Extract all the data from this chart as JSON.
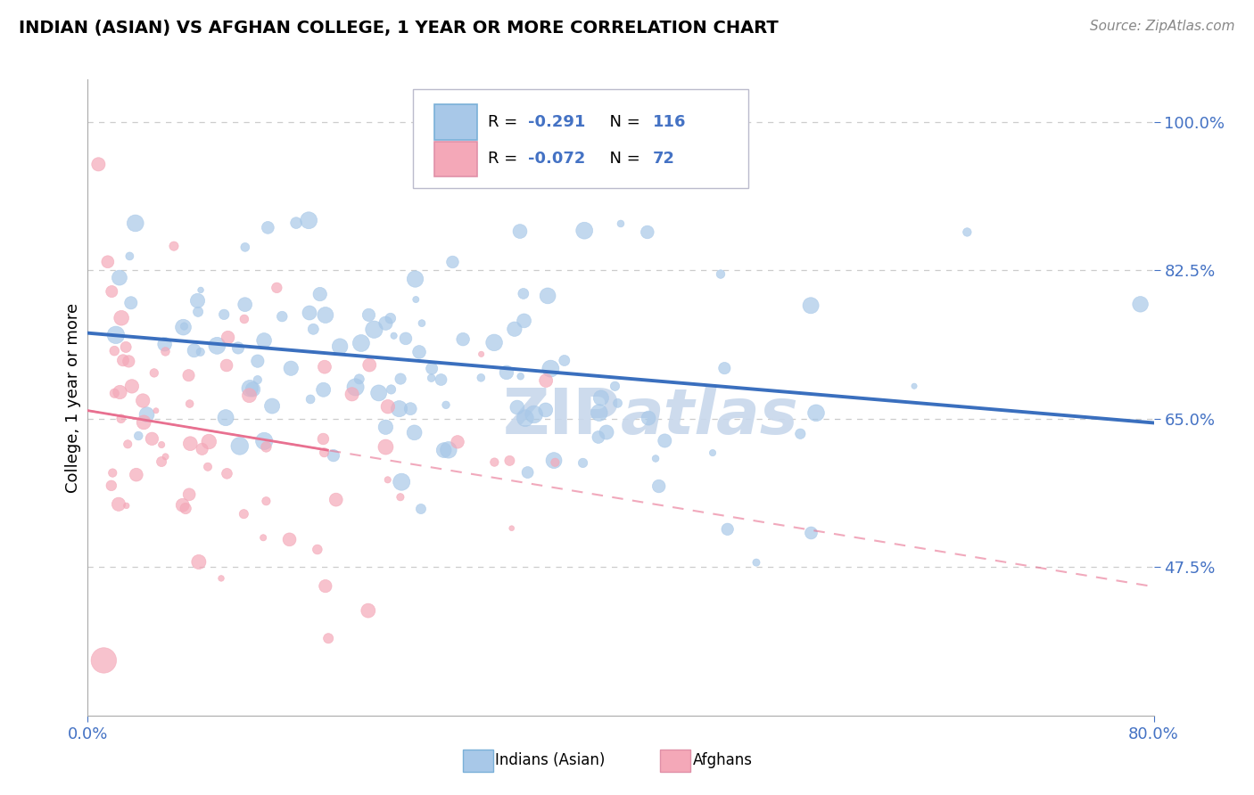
{
  "title": "INDIAN (ASIAN) VS AFGHAN COLLEGE, 1 YEAR OR MORE CORRELATION CHART",
  "source_text": "Source: ZipAtlas.com",
  "ylabel": "College, 1 year or more",
  "xlim": [
    0.0,
    0.8
  ],
  "ylim": [
    0.3,
    1.05
  ],
  "xticklabels": [
    "0.0%",
    "80.0%"
  ],
  "yticklabels": [
    "47.5%",
    "65.0%",
    "82.5%",
    "100.0%"
  ],
  "ytick_vals": [
    0.475,
    0.65,
    0.825,
    1.0
  ],
  "color_indian": "#a8c8e8",
  "color_afghan": "#f4a8b8",
  "color_line_indian": "#3a6fbe",
  "color_line_afghan": "#e87090",
  "watermark_color": "#c8d8ec",
  "legend_box_color": "#e8e8f0",
  "grid_color": "#cccccc"
}
